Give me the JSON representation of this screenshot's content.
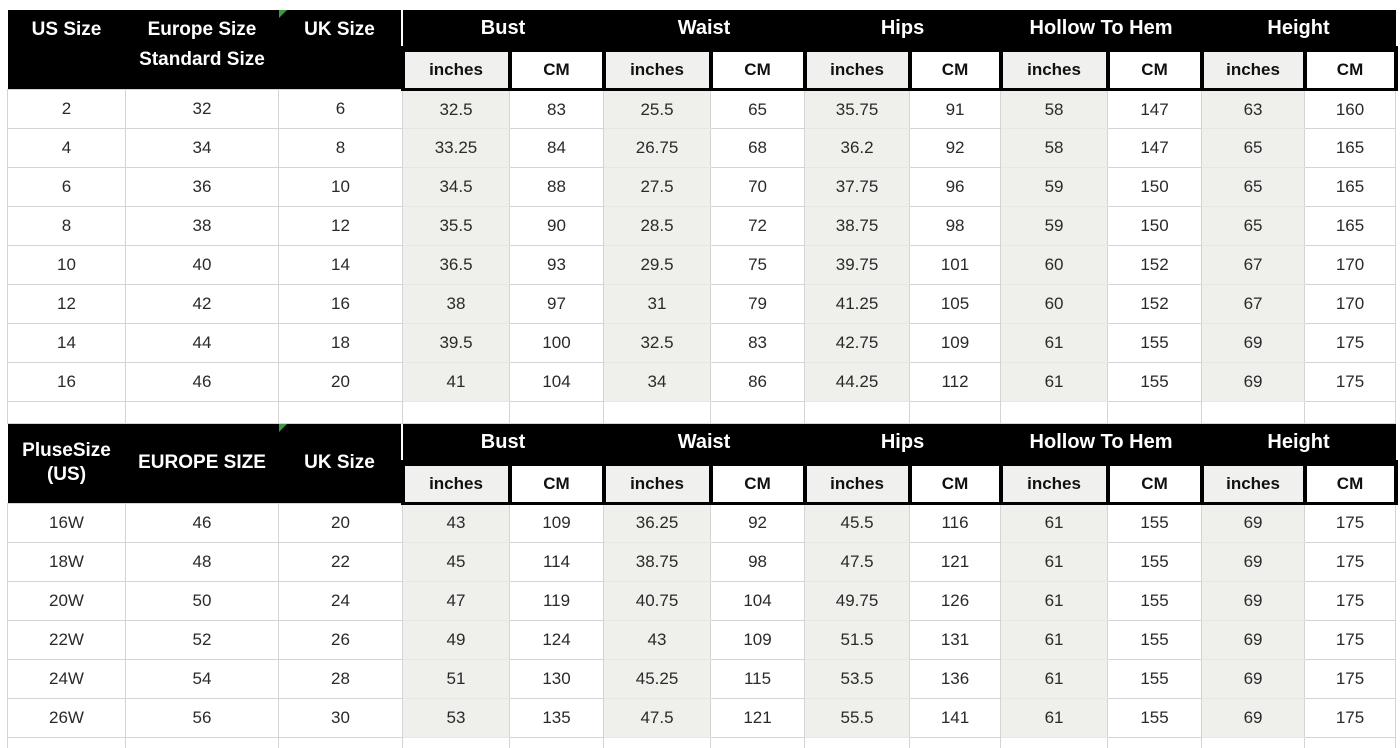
{
  "chart_data": [
    {
      "type": "table",
      "name": "standard-size-chart",
      "header": {
        "col1": [
          "US Size",
          ""
        ],
        "col2": [
          "Europe Size",
          "Standard Size"
        ],
        "col3": "UK Size",
        "groups": [
          "Bust",
          "Waist",
          "Hips",
          "Hollow To Hem",
          "Height"
        ],
        "unit_inches": "inches",
        "unit_cm": "CM"
      },
      "rows": [
        [
          "2",
          "32",
          "6",
          "32.5",
          "83",
          "25.5",
          "65",
          "35.75",
          "91",
          "58",
          "147",
          "63",
          "160"
        ],
        [
          "4",
          "34",
          "8",
          "33.25",
          "84",
          "26.75",
          "68",
          "36.2",
          "92",
          "58",
          "147",
          "65",
          "165"
        ],
        [
          "6",
          "36",
          "10",
          "34.5",
          "88",
          "27.5",
          "70",
          "37.75",
          "96",
          "59",
          "150",
          "65",
          "165"
        ],
        [
          "8",
          "38",
          "12",
          "35.5",
          "90",
          "28.5",
          "72",
          "38.75",
          "98",
          "59",
          "150",
          "65",
          "165"
        ],
        [
          "10",
          "40",
          "14",
          "36.5",
          "93",
          "29.5",
          "75",
          "39.75",
          "101",
          "60",
          "152",
          "67",
          "170"
        ],
        [
          "12",
          "42",
          "16",
          "38",
          "97",
          "31",
          "79",
          "41.25",
          "105",
          "60",
          "152",
          "67",
          "170"
        ],
        [
          "14",
          "44",
          "18",
          "39.5",
          "100",
          "32.5",
          "83",
          "42.75",
          "109",
          "61",
          "155",
          "69",
          "175"
        ],
        [
          "16",
          "46",
          "20",
          "41",
          "104",
          "34",
          "86",
          "44.25",
          "112",
          "61",
          "155",
          "69",
          "175"
        ]
      ]
    },
    {
      "type": "table",
      "name": "plus-size-chart",
      "header": {
        "col1": [
          "PluseSize",
          "(US)"
        ],
        "col2": [
          "EUROPE SIZE",
          ""
        ],
        "col3": "UK Size",
        "groups": [
          "Bust",
          "Waist",
          "Hips",
          "Hollow To Hem",
          "Height"
        ],
        "unit_inches": "inches",
        "unit_cm": "CM"
      },
      "rows": [
        [
          "16W",
          "46",
          "20",
          "43",
          "109",
          "36.25",
          "92",
          "45.5",
          "116",
          "61",
          "155",
          "69",
          "175"
        ],
        [
          "18W",
          "48",
          "22",
          "45",
          "114",
          "38.75",
          "98",
          "47.5",
          "121",
          "61",
          "155",
          "69",
          "175"
        ],
        [
          "20W",
          "50",
          "24",
          "47",
          "119",
          "40.75",
          "104",
          "49.75",
          "126",
          "61",
          "155",
          "69",
          "175"
        ],
        [
          "22W",
          "52",
          "26",
          "49",
          "124",
          "43",
          "109",
          "51.5",
          "131",
          "61",
          "155",
          "69",
          "175"
        ],
        [
          "24W",
          "54",
          "28",
          "51",
          "130",
          "45.25",
          "115",
          "53.5",
          "136",
          "61",
          "155",
          "69",
          "175"
        ],
        [
          "26W",
          "56",
          "30",
          "53",
          "135",
          "47.5",
          "121",
          "55.5",
          "141",
          "61",
          "155",
          "69",
          "175"
        ]
      ]
    }
  ],
  "colors": {
    "header_bg": "#000000",
    "header_text": "#ffffff",
    "stripe": "#eff0eb",
    "subheader_inches_bg": "#f0f0ee",
    "subheader_cm_bg": "#ffffff",
    "border": "#d4d4d4",
    "flag_green": "#3a9a3c"
  }
}
